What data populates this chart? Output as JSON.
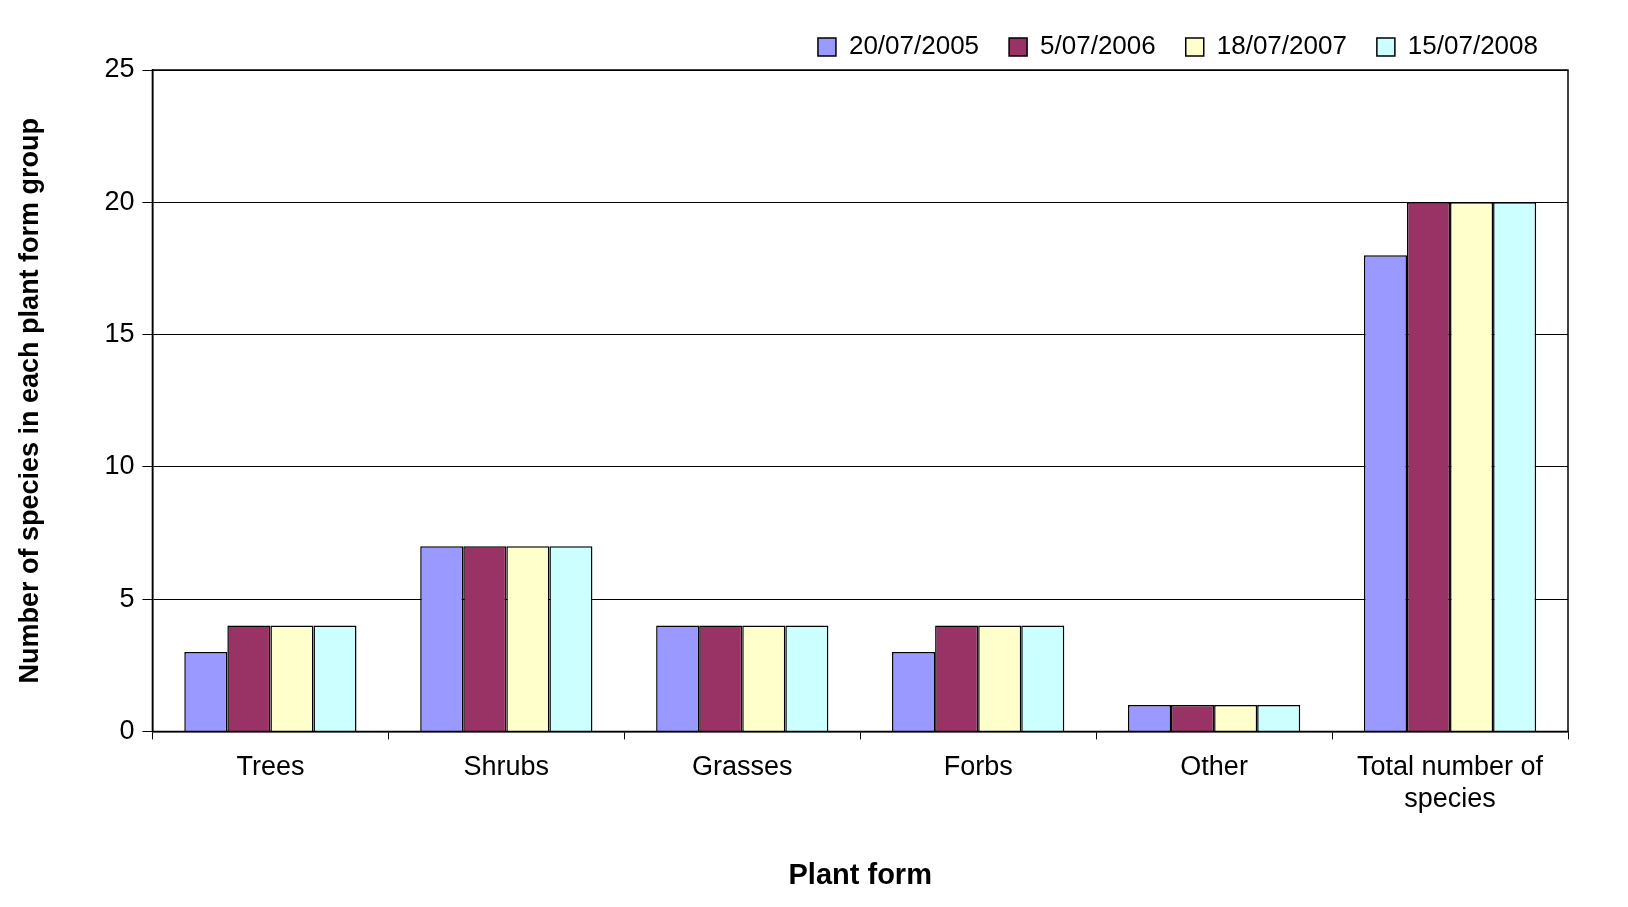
{
  "chart_data": {
    "type": "bar",
    "xlabel": "Plant form",
    "ylabel": "Number of species in each plant form group",
    "categories": [
      "Trees",
      "Shrubs",
      "Grasses",
      "Forbs",
      "Other",
      "Total number of species"
    ],
    "series": [
      {
        "name": "20/07/2005",
        "color": "#9999ff",
        "values": [
          3,
          7,
          4,
          3,
          1,
          18
        ]
      },
      {
        "name": "5/07/2006",
        "color": "#993366",
        "values": [
          4,
          7,
          4,
          4,
          1,
          20
        ]
      },
      {
        "name": "18/07/2007",
        "color": "#ffffcc",
        "values": [
          4,
          7,
          4,
          4,
          1,
          20
        ]
      },
      {
        "name": "15/07/2008",
        "color": "#ccffff",
        "values": [
          4,
          7,
          4,
          4,
          1,
          20
        ]
      }
    ],
    "ylim": [
      0,
      25
    ],
    "yticks": [
      0,
      5,
      10,
      15,
      20,
      25
    ],
    "grid": "y",
    "legend": "top right"
  }
}
